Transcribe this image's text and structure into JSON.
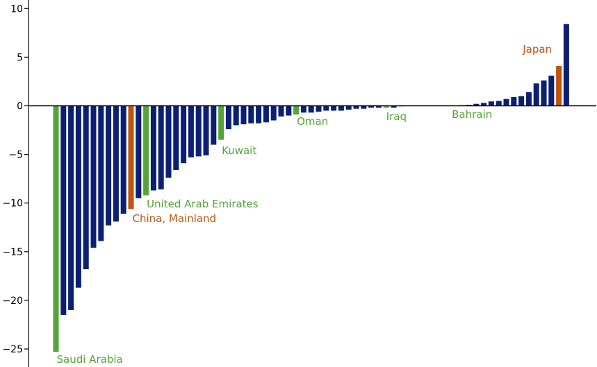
{
  "colors": {
    "default": "#0b1f73",
    "gcc": "#55a339",
    "highlight": "#c1530f",
    "axis": "#000000"
  },
  "chart_data": {
    "type": "bar",
    "title": "",
    "xlabel": "",
    "ylabel": "",
    "ylim": [
      -27,
      10
    ],
    "yticks": [
      10,
      5,
      0,
      -5,
      -10,
      -15,
      -20,
      -25
    ],
    "ytick_labels": [
      "10",
      "5",
      "0",
      "−5",
      "−10",
      "−15",
      "−20",
      "−25"
    ],
    "grid": false,
    "legend": "none",
    "bars": [
      {
        "value": -25.3,
        "group": "gcc",
        "label": "Saudi Arabia"
      },
      {
        "value": -21.5,
        "group": "default"
      },
      {
        "value": -21.0,
        "group": "default"
      },
      {
        "value": -18.7,
        "group": "default"
      },
      {
        "value": -16.8,
        "group": "default"
      },
      {
        "value": -14.6,
        "group": "default"
      },
      {
        "value": -13.9,
        "group": "default"
      },
      {
        "value": -12.3,
        "group": "default"
      },
      {
        "value": -11.9,
        "group": "default"
      },
      {
        "value": -11.1,
        "group": "default"
      },
      {
        "value": -10.6,
        "group": "highlight",
        "label": "China, Mainland"
      },
      {
        "value": -9.5,
        "group": "default"
      },
      {
        "value": -9.2,
        "group": "gcc",
        "label": "United Arab Emirates"
      },
      {
        "value": -8.7,
        "group": "default"
      },
      {
        "value": -8.6,
        "group": "default"
      },
      {
        "value": -7.4,
        "group": "default"
      },
      {
        "value": -6.6,
        "group": "default"
      },
      {
        "value": -5.9,
        "group": "default"
      },
      {
        "value": -5.3,
        "group": "default"
      },
      {
        "value": -5.2,
        "group": "default"
      },
      {
        "value": -5.1,
        "group": "default"
      },
      {
        "value": -4.0,
        "group": "default"
      },
      {
        "value": -3.5,
        "group": "gcc",
        "label": "Kuwait"
      },
      {
        "value": -2.4,
        "group": "default"
      },
      {
        "value": -2.0,
        "group": "default"
      },
      {
        "value": -1.9,
        "group": "default"
      },
      {
        "value": -1.8,
        "group": "default"
      },
      {
        "value": -1.8,
        "group": "default"
      },
      {
        "value": -1.7,
        "group": "default"
      },
      {
        "value": -1.5,
        "group": "default"
      },
      {
        "value": -1.1,
        "group": "default"
      },
      {
        "value": -1.0,
        "group": "default"
      },
      {
        "value": -0.9,
        "group": "gcc",
        "label": "Oman"
      },
      {
        "value": -0.7,
        "group": "default"
      },
      {
        "value": -0.7,
        "group": "default"
      },
      {
        "value": -0.6,
        "group": "default"
      },
      {
        "value": -0.5,
        "group": "default"
      },
      {
        "value": -0.5,
        "group": "default"
      },
      {
        "value": -0.5,
        "group": "default"
      },
      {
        "value": -0.4,
        "group": "default"
      },
      {
        "value": -0.3,
        "group": "default"
      },
      {
        "value": -0.3,
        "group": "default"
      },
      {
        "value": -0.2,
        "group": "default"
      },
      {
        "value": -0.2,
        "group": "default"
      },
      {
        "value": -0.2,
        "group": "gcc",
        "label": "Iraq"
      },
      {
        "value": -0.2,
        "group": "default"
      },
      {
        "value": -0.05,
        "group": "default"
      },
      {
        "value": -0.03,
        "group": "default"
      },
      {
        "value": -0.02,
        "group": "default"
      },
      {
        "value": -0.01,
        "group": "default"
      },
      {
        "value": 0.0,
        "group": "default"
      },
      {
        "value": 0.0,
        "group": "default"
      },
      {
        "value": 0.0,
        "group": "gcc",
        "label": "Bahrain"
      },
      {
        "value": 0.02,
        "group": "default"
      },
      {
        "value": 0.05,
        "group": "default"
      },
      {
        "value": 0.1,
        "group": "default"
      },
      {
        "value": 0.2,
        "group": "default"
      },
      {
        "value": 0.3,
        "group": "default"
      },
      {
        "value": 0.45,
        "group": "default"
      },
      {
        "value": 0.5,
        "group": "default"
      },
      {
        "value": 0.7,
        "group": "default"
      },
      {
        "value": 0.9,
        "group": "default"
      },
      {
        "value": 1.0,
        "group": "default"
      },
      {
        "value": 1.4,
        "group": "default"
      },
      {
        "value": 2.3,
        "group": "default"
      },
      {
        "value": 2.6,
        "group": "default"
      },
      {
        "value": 3.1,
        "group": "default"
      },
      {
        "value": 4.1,
        "group": "highlight",
        "label": "Japan"
      },
      {
        "value": 8.4,
        "group": "default"
      }
    ]
  }
}
